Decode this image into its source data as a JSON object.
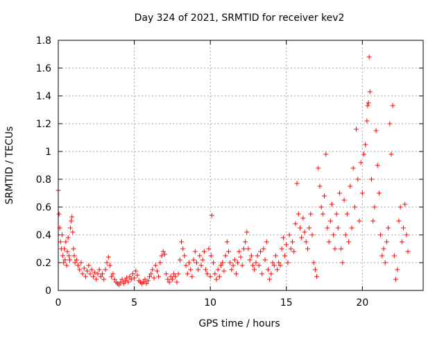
{
  "chart_data": {
    "type": "scatter",
    "title": "Day 324 of 2021, SRMTID for receiver kev2",
    "xlabel": "GPS time / hours",
    "ylabel": "SRMTID / TECUs",
    "xlim": [
      0,
      24
    ],
    "ylim": [
      0,
      1.8
    ],
    "x_ticks": [
      0,
      5,
      10,
      15,
      20
    ],
    "y_ticks": [
      0,
      0.2,
      0.4,
      0.6,
      0.8,
      1,
      1.2,
      1.4,
      1.6,
      1.8
    ],
    "x_tick_labels": [
      "0",
      "5",
      "10",
      "15",
      "20"
    ],
    "y_tick_labels": [
      "0",
      "0.2",
      "0.4",
      "0.6",
      "0.8",
      "1",
      "1.2",
      "1.4",
      "1.6",
      "1.8"
    ],
    "grid": true,
    "marker": "plus",
    "color": "#ff0000",
    "series": [
      {
        "name": "SRMTID",
        "points": [
          [
            0.0,
            0.72
          ],
          [
            0.05,
            0.55
          ],
          [
            0.1,
            0.45
          ],
          [
            0.15,
            0.35
          ],
          [
            0.2,
            0.3
          ],
          [
            0.25,
            0.4
          ],
          [
            0.3,
            0.25
          ],
          [
            0.35,
            0.2
          ],
          [
            0.4,
            0.3
          ],
          [
            0.45,
            0.22
          ],
          [
            0.5,
            0.35
          ],
          [
            0.55,
            0.18
          ],
          [
            0.6,
            0.28
          ],
          [
            0.65,
            0.38
          ],
          [
            0.7,
            0.25
          ],
          [
            0.75,
            0.22
          ],
          [
            0.8,
            0.45
          ],
          [
            0.85,
            0.5
          ],
          [
            0.9,
            0.53
          ],
          [
            0.95,
            0.42
          ],
          [
            1.0,
            0.3
          ],
          [
            1.05,
            0.25
          ],
          [
            1.1,
            0.2
          ],
          [
            1.2,
            0.22
          ],
          [
            1.3,
            0.18
          ],
          [
            1.4,
            0.15
          ],
          [
            1.5,
            0.2
          ],
          [
            1.6,
            0.12
          ],
          [
            1.7,
            0.16
          ],
          [
            1.8,
            0.1
          ],
          [
            1.9,
            0.14
          ],
          [
            2.0,
            0.18
          ],
          [
            2.1,
            0.12
          ],
          [
            2.2,
            0.15
          ],
          [
            2.3,
            0.1
          ],
          [
            2.4,
            0.13
          ],
          [
            2.5,
            0.08
          ],
          [
            2.6,
            0.12
          ],
          [
            2.7,
            0.15
          ],
          [
            2.8,
            0.1
          ],
          [
            2.9,
            0.12
          ],
          [
            3.0,
            0.08
          ],
          [
            3.1,
            0.15
          ],
          [
            3.2,
            0.2
          ],
          [
            3.3,
            0.24
          ],
          [
            3.4,
            0.18
          ],
          [
            3.5,
            0.1
          ],
          [
            3.6,
            0.12
          ],
          [
            3.7,
            0.08
          ],
          [
            3.8,
            0.06
          ],
          [
            3.9,
            0.05
          ],
          [
            4.0,
            0.04
          ],
          [
            4.1,
            0.06
          ],
          [
            4.2,
            0.08
          ],
          [
            4.3,
            0.05
          ],
          [
            4.4,
            0.07
          ],
          [
            4.5,
            0.09
          ],
          [
            4.6,
            0.06
          ],
          [
            4.7,
            0.1
          ],
          [
            4.8,
            0.08
          ],
          [
            4.9,
            0.12
          ],
          [
            5.0,
            0.09
          ],
          [
            5.1,
            0.14
          ],
          [
            5.2,
            0.11
          ],
          [
            5.3,
            0.07
          ],
          [
            5.4,
            0.06
          ],
          [
            5.5,
            0.05
          ],
          [
            5.6,
            0.06
          ],
          [
            5.7,
            0.08
          ],
          [
            5.8,
            0.05
          ],
          [
            5.9,
            0.07
          ],
          [
            6.0,
            0.1
          ],
          [
            6.1,
            0.12
          ],
          [
            6.2,
            0.15
          ],
          [
            6.3,
            0.09
          ],
          [
            6.4,
            0.18
          ],
          [
            6.5,
            0.14
          ],
          [
            6.6,
            0.1
          ],
          [
            6.7,
            0.2
          ],
          [
            6.8,
            0.25
          ],
          [
            6.9,
            0.28
          ],
          [
            7.0,
            0.26
          ],
          [
            7.1,
            0.12
          ],
          [
            7.2,
            0.08
          ],
          [
            7.3,
            0.06
          ],
          [
            7.4,
            0.1
          ],
          [
            7.5,
            0.08
          ],
          [
            7.6,
            0.12
          ],
          [
            7.7,
            0.1
          ],
          [
            7.8,
            0.06
          ],
          [
            7.9,
            0.12
          ],
          [
            8.0,
            0.22
          ],
          [
            8.1,
            0.35
          ],
          [
            8.2,
            0.3
          ],
          [
            8.3,
            0.25
          ],
          [
            8.4,
            0.18
          ],
          [
            8.5,
            0.12
          ],
          [
            8.6,
            0.2
          ],
          [
            8.7,
            0.15
          ],
          [
            8.8,
            0.1
          ],
          [
            8.9,
            0.22
          ],
          [
            9.0,
            0.28
          ],
          [
            9.1,
            0.2
          ],
          [
            9.2,
            0.15
          ],
          [
            9.3,
            0.25
          ],
          [
            9.4,
            0.18
          ],
          [
            9.5,
            0.22
          ],
          [
            9.6,
            0.28
          ],
          [
            9.7,
            0.15
          ],
          [
            9.8,
            0.12
          ],
          [
            9.9,
            0.3
          ],
          [
            10.0,
            0.1
          ],
          [
            10.05,
            0.25
          ],
          [
            10.1,
            0.54
          ],
          [
            10.2,
            0.2
          ],
          [
            10.3,
            0.12
          ],
          [
            10.4,
            0.08
          ],
          [
            10.5,
            0.15
          ],
          [
            10.6,
            0.1
          ],
          [
            10.7,
            0.18
          ],
          [
            10.8,
            0.2
          ],
          [
            10.9,
            0.14
          ],
          [
            11.0,
            0.25
          ],
          [
            11.1,
            0.35
          ],
          [
            11.2,
            0.28
          ],
          [
            11.3,
            0.2
          ],
          [
            11.4,
            0.15
          ],
          [
            11.5,
            0.18
          ],
          [
            11.6,
            0.22
          ],
          [
            11.7,
            0.12
          ],
          [
            11.8,
            0.2
          ],
          [
            11.9,
            0.28
          ],
          [
            12.0,
            0.24
          ],
          [
            12.1,
            0.18
          ],
          [
            12.2,
            0.3
          ],
          [
            12.3,
            0.35
          ],
          [
            12.4,
            0.42
          ],
          [
            12.5,
            0.3
          ],
          [
            12.6,
            0.22
          ],
          [
            12.7,
            0.25
          ],
          [
            12.8,
            0.18
          ],
          [
            12.9,
            0.15
          ],
          [
            13.0,
            0.2
          ],
          [
            13.1,
            0.25
          ],
          [
            13.2,
            0.18
          ],
          [
            13.3,
            0.28
          ],
          [
            13.4,
            0.12
          ],
          [
            13.5,
            0.3
          ],
          [
            13.6,
            0.22
          ],
          [
            13.7,
            0.35
          ],
          [
            13.8,
            0.15
          ],
          [
            13.9,
            0.08
          ],
          [
            14.0,
            0.12
          ],
          [
            14.1,
            0.2
          ],
          [
            14.2,
            0.18
          ],
          [
            14.3,
            0.25
          ],
          [
            14.4,
            0.15
          ],
          [
            14.5,
            0.2
          ],
          [
            14.6,
            0.18
          ],
          [
            14.7,
            0.3
          ],
          [
            14.8,
            0.38
          ],
          [
            14.9,
            0.25
          ],
          [
            15.0,
            0.33
          ],
          [
            15.1,
            0.2
          ],
          [
            15.2,
            0.4
          ],
          [
            15.3,
            0.3
          ],
          [
            15.4,
            0.35
          ],
          [
            15.5,
            0.28
          ],
          [
            15.6,
            0.48
          ],
          [
            15.7,
            0.77
          ],
          [
            15.8,
            0.55
          ],
          [
            15.9,
            0.45
          ],
          [
            16.0,
            0.38
          ],
          [
            16.1,
            0.52
          ],
          [
            16.2,
            0.42
          ],
          [
            16.3,
            0.35
          ],
          [
            16.4,
            0.3
          ],
          [
            16.5,
            0.45
          ],
          [
            16.6,
            0.55
          ],
          [
            16.7,
            0.4
          ],
          [
            16.8,
            0.2
          ],
          [
            16.9,
            0.15
          ],
          [
            17.0,
            0.1
          ],
          [
            17.1,
            0.88
          ],
          [
            17.2,
            0.75
          ],
          [
            17.3,
            0.6
          ],
          [
            17.4,
            0.55
          ],
          [
            17.5,
            0.68
          ],
          [
            17.6,
            0.98
          ],
          [
            17.7,
            0.45
          ],
          [
            17.8,
            0.35
          ],
          [
            17.9,
            0.5
          ],
          [
            18.0,
            0.62
          ],
          [
            18.1,
            0.4
          ],
          [
            18.2,
            0.3
          ],
          [
            18.3,
            0.55
          ],
          [
            18.4,
            0.45
          ],
          [
            18.5,
            0.7
          ],
          [
            18.6,
            0.3
          ],
          [
            18.7,
            0.2
          ],
          [
            18.8,
            0.65
          ],
          [
            18.9,
            0.4
          ],
          [
            19.0,
            0.55
          ],
          [
            19.1,
            0.35
          ],
          [
            19.2,
            0.75
          ],
          [
            19.3,
            0.45
          ],
          [
            19.4,
            0.88
          ],
          [
            19.5,
            0.6
          ],
          [
            19.6,
            1.16
          ],
          [
            19.7,
            0.8
          ],
          [
            19.8,
            0.5
          ],
          [
            19.9,
            0.92
          ],
          [
            20.0,
            0.7
          ],
          [
            20.1,
            0.98
          ],
          [
            20.2,
            1.05
          ],
          [
            20.3,
            1.22
          ],
          [
            20.35,
            1.33
          ],
          [
            20.4,
            1.35
          ],
          [
            20.45,
            1.68
          ],
          [
            20.5,
            1.43
          ],
          [
            20.6,
            0.8
          ],
          [
            20.7,
            0.5
          ],
          [
            20.8,
            0.6
          ],
          [
            20.9,
            1.15
          ],
          [
            21.0,
            0.9
          ],
          [
            21.1,
            0.7
          ],
          [
            21.2,
            0.4
          ],
          [
            21.3,
            0.25
          ],
          [
            21.4,
            0.3
          ],
          [
            21.5,
            0.2
          ],
          [
            21.6,
            0.35
          ],
          [
            21.7,
            0.45
          ],
          [
            21.8,
            1.2
          ],
          [
            21.9,
            0.98
          ],
          [
            22.0,
            1.33
          ],
          [
            22.1,
            0.25
          ],
          [
            22.2,
            0.08
          ],
          [
            22.3,
            0.15
          ],
          [
            22.4,
            0.5
          ],
          [
            22.5,
            0.6
          ],
          [
            22.6,
            0.35
          ],
          [
            22.7,
            0.45
          ],
          [
            22.8,
            0.62
          ],
          [
            22.9,
            0.4
          ],
          [
            23.0,
            0.28
          ]
        ]
      }
    ]
  }
}
